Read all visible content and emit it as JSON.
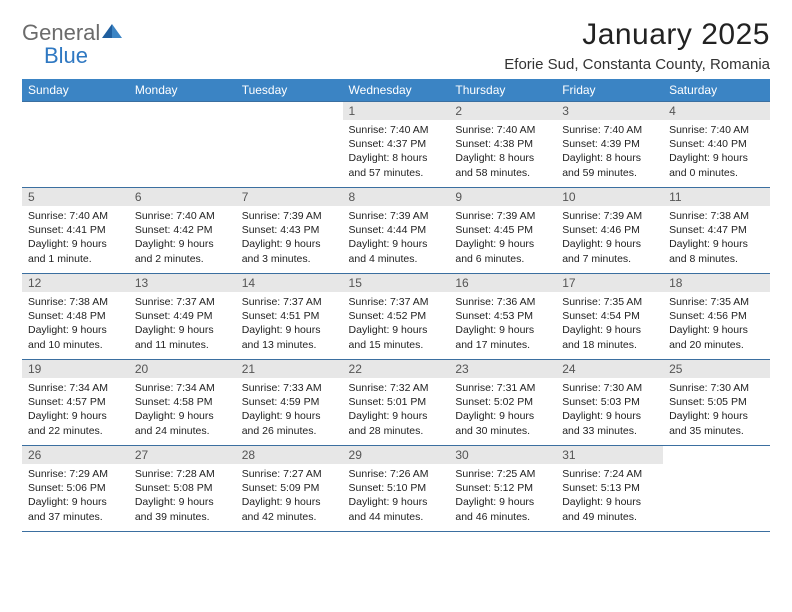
{
  "logo": {
    "general": "General",
    "blue": "Blue"
  },
  "title": "January 2025",
  "location": "Eforie Sud, Constanta County, Romania",
  "colors": {
    "header_bg": "#3b84c4",
    "header_text": "#ffffff",
    "border": "#3b6fa0",
    "daynum_bg": "#e7e7e7",
    "logo_gray": "#6b6b6b",
    "logo_blue": "#2f78c2"
  },
  "day_headers": [
    "Sunday",
    "Monday",
    "Tuesday",
    "Wednesday",
    "Thursday",
    "Friday",
    "Saturday"
  ],
  "weeks": [
    [
      {
        "n": "",
        "lines": [
          "",
          "",
          "",
          ""
        ],
        "empty": true
      },
      {
        "n": "",
        "lines": [
          "",
          "",
          "",
          ""
        ],
        "empty": true
      },
      {
        "n": "",
        "lines": [
          "",
          "",
          "",
          ""
        ],
        "empty": true
      },
      {
        "n": "1",
        "lines": [
          "Sunrise: 7:40 AM",
          "Sunset: 4:37 PM",
          "Daylight: 8 hours",
          "and 57 minutes."
        ]
      },
      {
        "n": "2",
        "lines": [
          "Sunrise: 7:40 AM",
          "Sunset: 4:38 PM",
          "Daylight: 8 hours",
          "and 58 minutes."
        ]
      },
      {
        "n": "3",
        "lines": [
          "Sunrise: 7:40 AM",
          "Sunset: 4:39 PM",
          "Daylight: 8 hours",
          "and 59 minutes."
        ]
      },
      {
        "n": "4",
        "lines": [
          "Sunrise: 7:40 AM",
          "Sunset: 4:40 PM",
          "Daylight: 9 hours",
          "and 0 minutes."
        ]
      }
    ],
    [
      {
        "n": "5",
        "lines": [
          "Sunrise: 7:40 AM",
          "Sunset: 4:41 PM",
          "Daylight: 9 hours",
          "and 1 minute."
        ]
      },
      {
        "n": "6",
        "lines": [
          "Sunrise: 7:40 AM",
          "Sunset: 4:42 PM",
          "Daylight: 9 hours",
          "and 2 minutes."
        ]
      },
      {
        "n": "7",
        "lines": [
          "Sunrise: 7:39 AM",
          "Sunset: 4:43 PM",
          "Daylight: 9 hours",
          "and 3 minutes."
        ]
      },
      {
        "n": "8",
        "lines": [
          "Sunrise: 7:39 AM",
          "Sunset: 4:44 PM",
          "Daylight: 9 hours",
          "and 4 minutes."
        ]
      },
      {
        "n": "9",
        "lines": [
          "Sunrise: 7:39 AM",
          "Sunset: 4:45 PM",
          "Daylight: 9 hours",
          "and 6 minutes."
        ]
      },
      {
        "n": "10",
        "lines": [
          "Sunrise: 7:39 AM",
          "Sunset: 4:46 PM",
          "Daylight: 9 hours",
          "and 7 minutes."
        ]
      },
      {
        "n": "11",
        "lines": [
          "Sunrise: 7:38 AM",
          "Sunset: 4:47 PM",
          "Daylight: 9 hours",
          "and 8 minutes."
        ]
      }
    ],
    [
      {
        "n": "12",
        "lines": [
          "Sunrise: 7:38 AM",
          "Sunset: 4:48 PM",
          "Daylight: 9 hours",
          "and 10 minutes."
        ]
      },
      {
        "n": "13",
        "lines": [
          "Sunrise: 7:37 AM",
          "Sunset: 4:49 PM",
          "Daylight: 9 hours",
          "and 11 minutes."
        ]
      },
      {
        "n": "14",
        "lines": [
          "Sunrise: 7:37 AM",
          "Sunset: 4:51 PM",
          "Daylight: 9 hours",
          "and 13 minutes."
        ]
      },
      {
        "n": "15",
        "lines": [
          "Sunrise: 7:37 AM",
          "Sunset: 4:52 PM",
          "Daylight: 9 hours",
          "and 15 minutes."
        ]
      },
      {
        "n": "16",
        "lines": [
          "Sunrise: 7:36 AM",
          "Sunset: 4:53 PM",
          "Daylight: 9 hours",
          "and 17 minutes."
        ]
      },
      {
        "n": "17",
        "lines": [
          "Sunrise: 7:35 AM",
          "Sunset: 4:54 PM",
          "Daylight: 9 hours",
          "and 18 minutes."
        ]
      },
      {
        "n": "18",
        "lines": [
          "Sunrise: 7:35 AM",
          "Sunset: 4:56 PM",
          "Daylight: 9 hours",
          "and 20 minutes."
        ]
      }
    ],
    [
      {
        "n": "19",
        "lines": [
          "Sunrise: 7:34 AM",
          "Sunset: 4:57 PM",
          "Daylight: 9 hours",
          "and 22 minutes."
        ]
      },
      {
        "n": "20",
        "lines": [
          "Sunrise: 7:34 AM",
          "Sunset: 4:58 PM",
          "Daylight: 9 hours",
          "and 24 minutes."
        ]
      },
      {
        "n": "21",
        "lines": [
          "Sunrise: 7:33 AM",
          "Sunset: 4:59 PM",
          "Daylight: 9 hours",
          "and 26 minutes."
        ]
      },
      {
        "n": "22",
        "lines": [
          "Sunrise: 7:32 AM",
          "Sunset: 5:01 PM",
          "Daylight: 9 hours",
          "and 28 minutes."
        ]
      },
      {
        "n": "23",
        "lines": [
          "Sunrise: 7:31 AM",
          "Sunset: 5:02 PM",
          "Daylight: 9 hours",
          "and 30 minutes."
        ]
      },
      {
        "n": "24",
        "lines": [
          "Sunrise: 7:30 AM",
          "Sunset: 5:03 PM",
          "Daylight: 9 hours",
          "and 33 minutes."
        ]
      },
      {
        "n": "25",
        "lines": [
          "Sunrise: 7:30 AM",
          "Sunset: 5:05 PM",
          "Daylight: 9 hours",
          "and 35 minutes."
        ]
      }
    ],
    [
      {
        "n": "26",
        "lines": [
          "Sunrise: 7:29 AM",
          "Sunset: 5:06 PM",
          "Daylight: 9 hours",
          "and 37 minutes."
        ]
      },
      {
        "n": "27",
        "lines": [
          "Sunrise: 7:28 AM",
          "Sunset: 5:08 PM",
          "Daylight: 9 hours",
          "and 39 minutes."
        ]
      },
      {
        "n": "28",
        "lines": [
          "Sunrise: 7:27 AM",
          "Sunset: 5:09 PM",
          "Daylight: 9 hours",
          "and 42 minutes."
        ]
      },
      {
        "n": "29",
        "lines": [
          "Sunrise: 7:26 AM",
          "Sunset: 5:10 PM",
          "Daylight: 9 hours",
          "and 44 minutes."
        ]
      },
      {
        "n": "30",
        "lines": [
          "Sunrise: 7:25 AM",
          "Sunset: 5:12 PM",
          "Daylight: 9 hours",
          "and 46 minutes."
        ]
      },
      {
        "n": "31",
        "lines": [
          "Sunrise: 7:24 AM",
          "Sunset: 5:13 PM",
          "Daylight: 9 hours",
          "and 49 minutes."
        ]
      },
      {
        "n": "",
        "lines": [
          "",
          "",
          "",
          ""
        ],
        "empty": true
      }
    ]
  ]
}
